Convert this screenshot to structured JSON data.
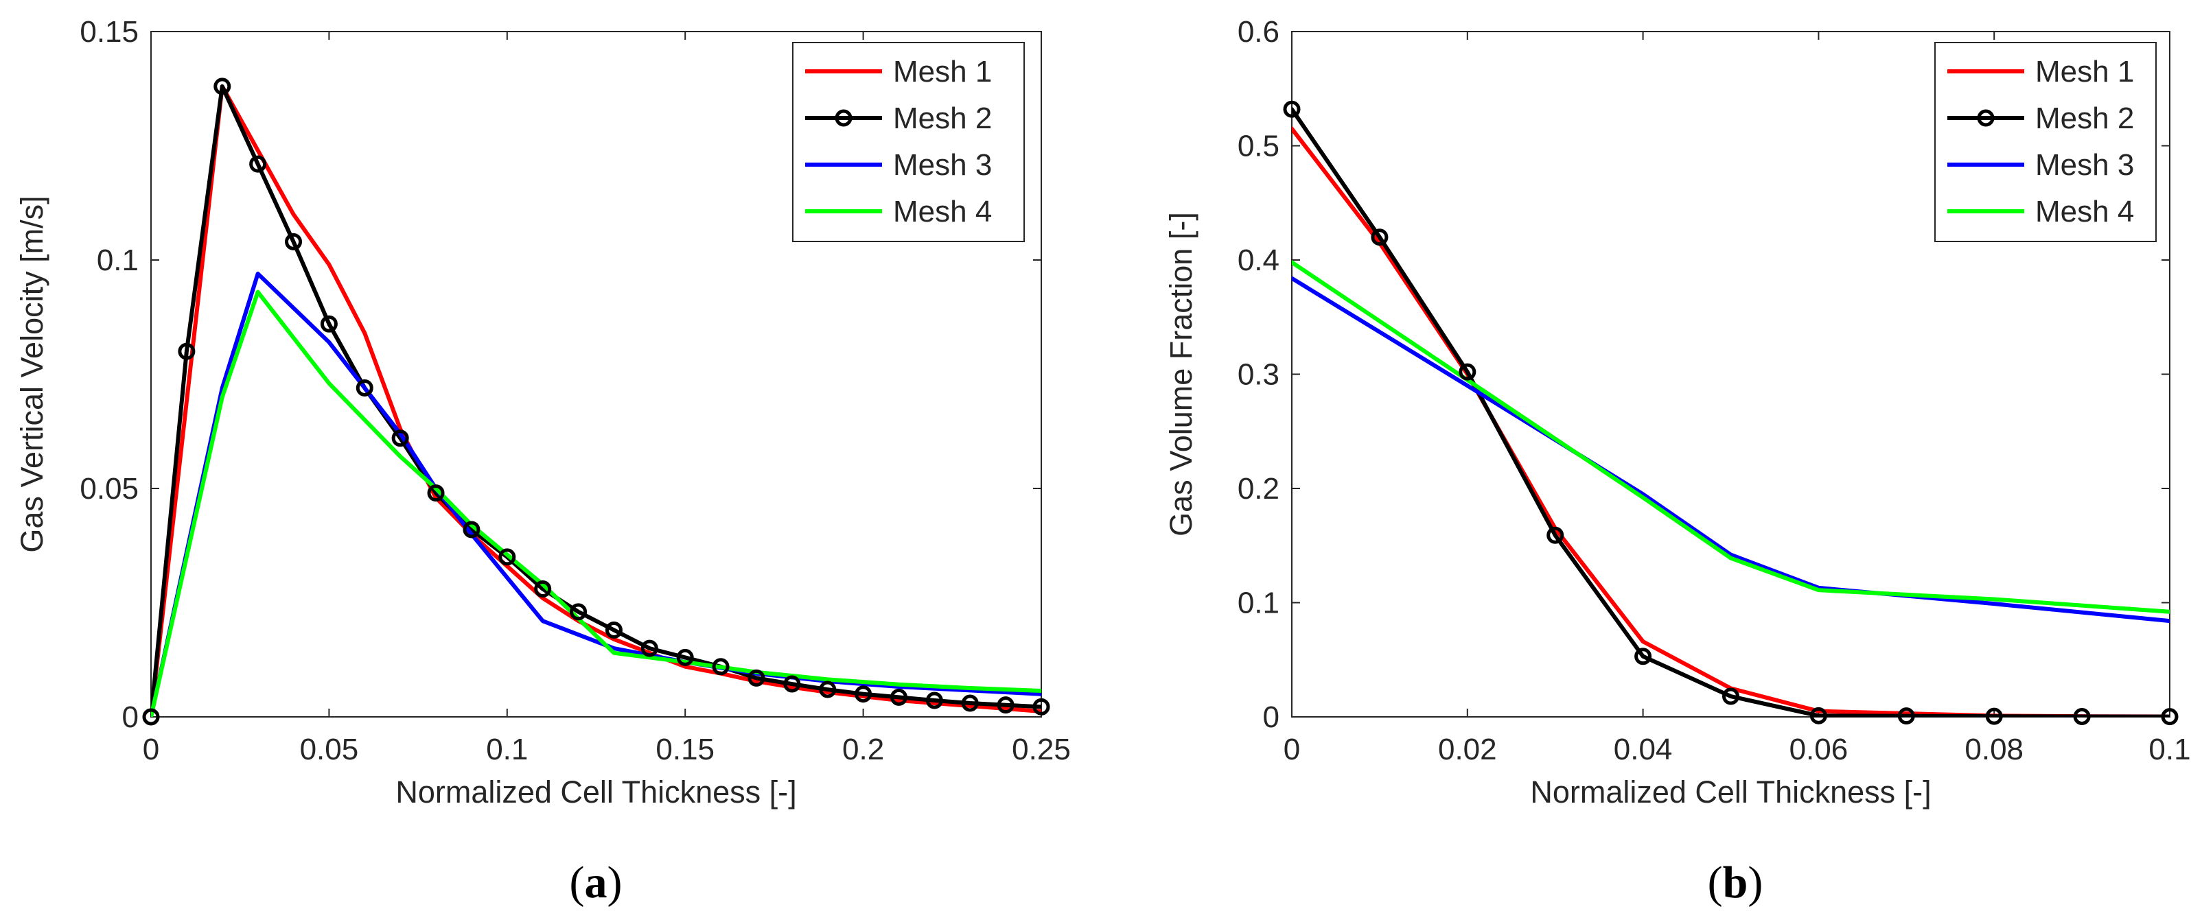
{
  "chart_data": [
    {
      "type": "line",
      "panel_label": "a",
      "title": "",
      "xlabel": "Normalized Cell Thickness [-]",
      "ylabel": "Gas Vertical Velocity [m/s]",
      "xlim": [
        0,
        0.25
      ],
      "ylim": [
        0,
        0.15
      ],
      "xticks": [
        0,
        0.05,
        0.1,
        0.15,
        0.2,
        0.25
      ],
      "xtick_labels": [
        "0",
        "0.05",
        "0.1",
        "0.15",
        "0.2",
        "0.25"
      ],
      "yticks": [
        0,
        0.05,
        0.1,
        0.15
      ],
      "ytick_labels": [
        "0",
        "0.05",
        "0.1",
        "0.15"
      ],
      "grid": false,
      "legend_position": "top-right",
      "series": [
        {
          "name": "Mesh 1",
          "color": "#ff0000",
          "marker": "none",
          "x": [
            0,
            0.02,
            0.03,
            0.04,
            0.05,
            0.06,
            0.07,
            0.08,
            0.09,
            0.1,
            0.11,
            0.12,
            0.13,
            0.14,
            0.15,
            0.16,
            0.17,
            0.18,
            0.19,
            0.2,
            0.21,
            0.22,
            0.23,
            0.24,
            0.25
          ],
          "y": [
            0,
            0.138,
            0.124,
            0.11,
            0.099,
            0.084,
            0.063,
            0.048,
            0.04,
            0.033,
            0.026,
            0.021,
            0.017,
            0.014,
            0.011,
            0.0095,
            0.0078,
            0.0065,
            0.0054,
            0.0045,
            0.0036,
            0.003,
            0.0024,
            0.0018,
            0.0012
          ]
        },
        {
          "name": "Mesh 2",
          "color": "#000000",
          "marker": "circle",
          "x": [
            0,
            0.01,
            0.02,
            0.03,
            0.04,
            0.05,
            0.06,
            0.07,
            0.08,
            0.09,
            0.1,
            0.11,
            0.12,
            0.13,
            0.14,
            0.15,
            0.16,
            0.17,
            0.18,
            0.19,
            0.2,
            0.21,
            0.22,
            0.23,
            0.24,
            0.25
          ],
          "y": [
            0,
            0.08,
            0.138,
            0.121,
            0.104,
            0.086,
            0.072,
            0.061,
            0.049,
            0.041,
            0.035,
            0.028,
            0.023,
            0.019,
            0.015,
            0.013,
            0.011,
            0.0085,
            0.0072,
            0.006,
            0.005,
            0.0043,
            0.0036,
            0.003,
            0.0026,
            0.0022
          ]
        },
        {
          "name": "Mesh 3",
          "color": "#0000ff",
          "marker": "none",
          "x": [
            0,
            0.02,
            0.03,
            0.05,
            0.07,
            0.08,
            0.09,
            0.11,
            0.13,
            0.15,
            0.17,
            0.19,
            0.21,
            0.23,
            0.25
          ],
          "y": [
            0,
            0.072,
            0.097,
            0.082,
            0.062,
            0.05,
            0.04,
            0.021,
            0.015,
            0.012,
            0.0095,
            0.0078,
            0.0066,
            0.0058,
            0.005
          ]
        },
        {
          "name": "Mesh 4",
          "color": "#00ff00",
          "marker": "none",
          "x": [
            0,
            0.02,
            0.03,
            0.05,
            0.07,
            0.08,
            0.09,
            0.11,
            0.13,
            0.15,
            0.17,
            0.19,
            0.21,
            0.23,
            0.25
          ],
          "y": [
            0,
            0.07,
            0.093,
            0.073,
            0.057,
            0.05,
            0.042,
            0.029,
            0.014,
            0.012,
            0.0098,
            0.0082,
            0.0071,
            0.0063,
            0.0057
          ]
        }
      ]
    },
    {
      "type": "line",
      "panel_label": "b",
      "title": "",
      "xlabel": "Normalized Cell Thickness [-]",
      "ylabel": "Gas Volume Fraction [-]",
      "xlim": [
        0,
        0.1
      ],
      "ylim": [
        0,
        0.6
      ],
      "xticks": [
        0,
        0.02,
        0.04,
        0.06,
        0.08,
        0.1
      ],
      "xtick_labels": [
        "0",
        "0.02",
        "0.04",
        "0.06",
        "0.08",
        "0.1"
      ],
      "yticks": [
        0,
        0.1,
        0.2,
        0.3,
        0.4,
        0.5,
        0.6
      ],
      "ytick_labels": [
        "0",
        "0.1",
        "0.2",
        "0.3",
        "0.4",
        "0.5",
        "0.6"
      ],
      "grid": false,
      "legend_position": "top-right",
      "series": [
        {
          "name": "Mesh 1",
          "color": "#ff0000",
          "marker": "none",
          "x": [
            0,
            0.01,
            0.02,
            0.03,
            0.04,
            0.05,
            0.06,
            0.07,
            0.08,
            0.09,
            0.1
          ],
          "y": [
            0.515,
            0.415,
            0.3,
            0.165,
            0.066,
            0.025,
            0.005,
            0.003,
            0.001,
            0.0005,
            0.0003
          ]
        },
        {
          "name": "Mesh 2",
          "color": "#000000",
          "marker": "circle",
          "x": [
            0,
            0.01,
            0.02,
            0.03,
            0.04,
            0.05,
            0.06,
            0.07,
            0.08,
            0.09,
            0.1
          ],
          "y": [
            0.532,
            0.42,
            0.302,
            0.159,
            0.053,
            0.018,
            0.001,
            0.0008,
            0.0005,
            0.0003,
            0.0002
          ]
        },
        {
          "name": "Mesh 3",
          "color": "#0000ff",
          "marker": "none",
          "x": [
            0,
            0.02,
            0.04,
            0.05,
            0.06,
            0.08,
            0.1
          ],
          "y": [
            0.384,
            0.29,
            0.195,
            0.142,
            0.113,
            0.099,
            0.084
          ]
        },
        {
          "name": "Mesh 4",
          "color": "#00ff00",
          "marker": "none",
          "x": [
            0,
            0.02,
            0.04,
            0.05,
            0.06,
            0.08,
            0.1
          ],
          "y": [
            0.398,
            0.295,
            0.192,
            0.139,
            0.111,
            0.103,
            0.092
          ]
        }
      ]
    }
  ]
}
